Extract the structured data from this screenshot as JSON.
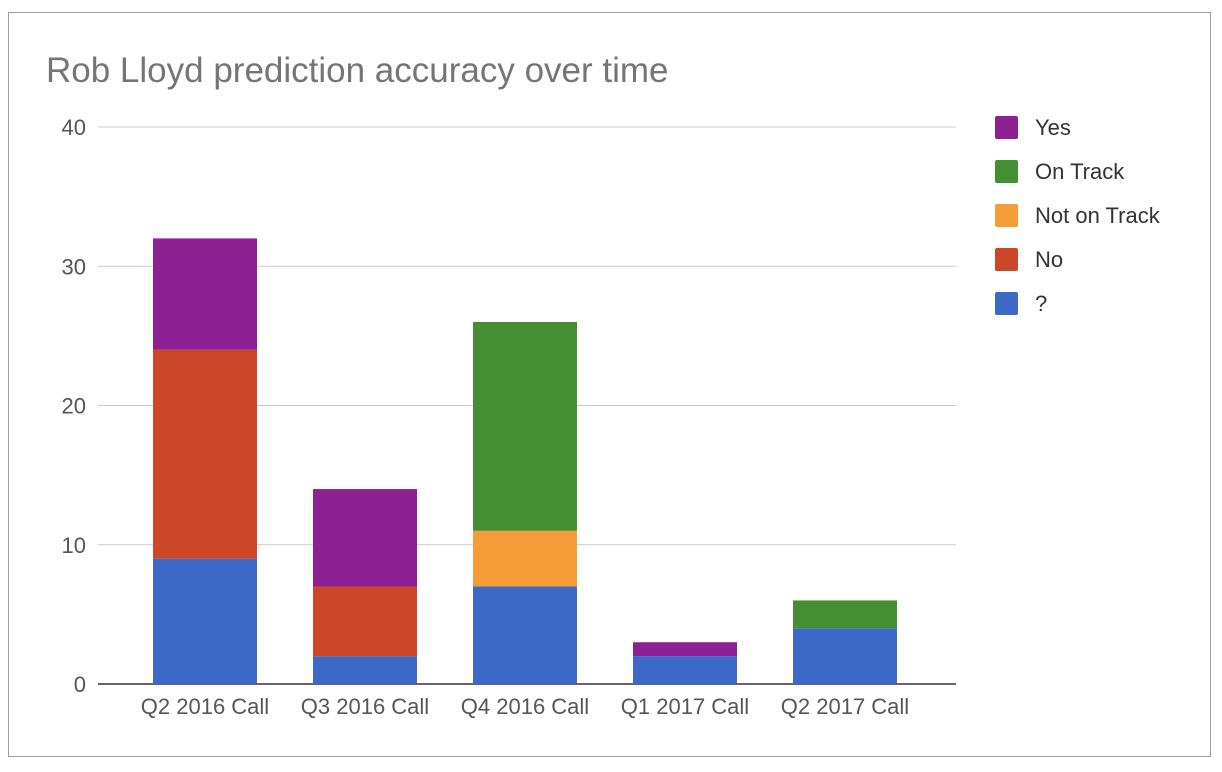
{
  "chart_data": {
    "type": "bar",
    "stacked": true,
    "title": "Rob Lloyd prediction accuracy over time",
    "xlabel": "",
    "ylabel": "",
    "ylim": [
      0,
      40
    ],
    "yticks": [
      "0",
      "10",
      "20",
      "30",
      "40"
    ],
    "grid": true,
    "legend_position": "right",
    "categories": [
      "Q2 2016 Call",
      "Q3 2016 Call",
      "Q4 2016 Call",
      "Q1 2017 Call",
      "Q2 2017 Call"
    ],
    "series": [
      {
        "name": "?",
        "color": "#3c69c7",
        "values": [
          9,
          2,
          7,
          2,
          4
        ]
      },
      {
        "name": "No",
        "color": "#cc4728",
        "values": [
          15,
          5,
          0,
          0,
          0
        ]
      },
      {
        "name": "Not on Track",
        "color": "#f39c38",
        "values": [
          0,
          0,
          4,
          0,
          0
        ]
      },
      {
        "name": "On Track",
        "color": "#448f31",
        "values": [
          0,
          0,
          15,
          0,
          2
        ]
      },
      {
        "name": "Yes",
        "color": "#8c2094",
        "values": [
          8,
          7,
          0,
          1,
          0
        ]
      }
    ],
    "legend_order": [
      "Yes",
      "On Track",
      "Not on Track",
      "No",
      "?"
    ]
  }
}
